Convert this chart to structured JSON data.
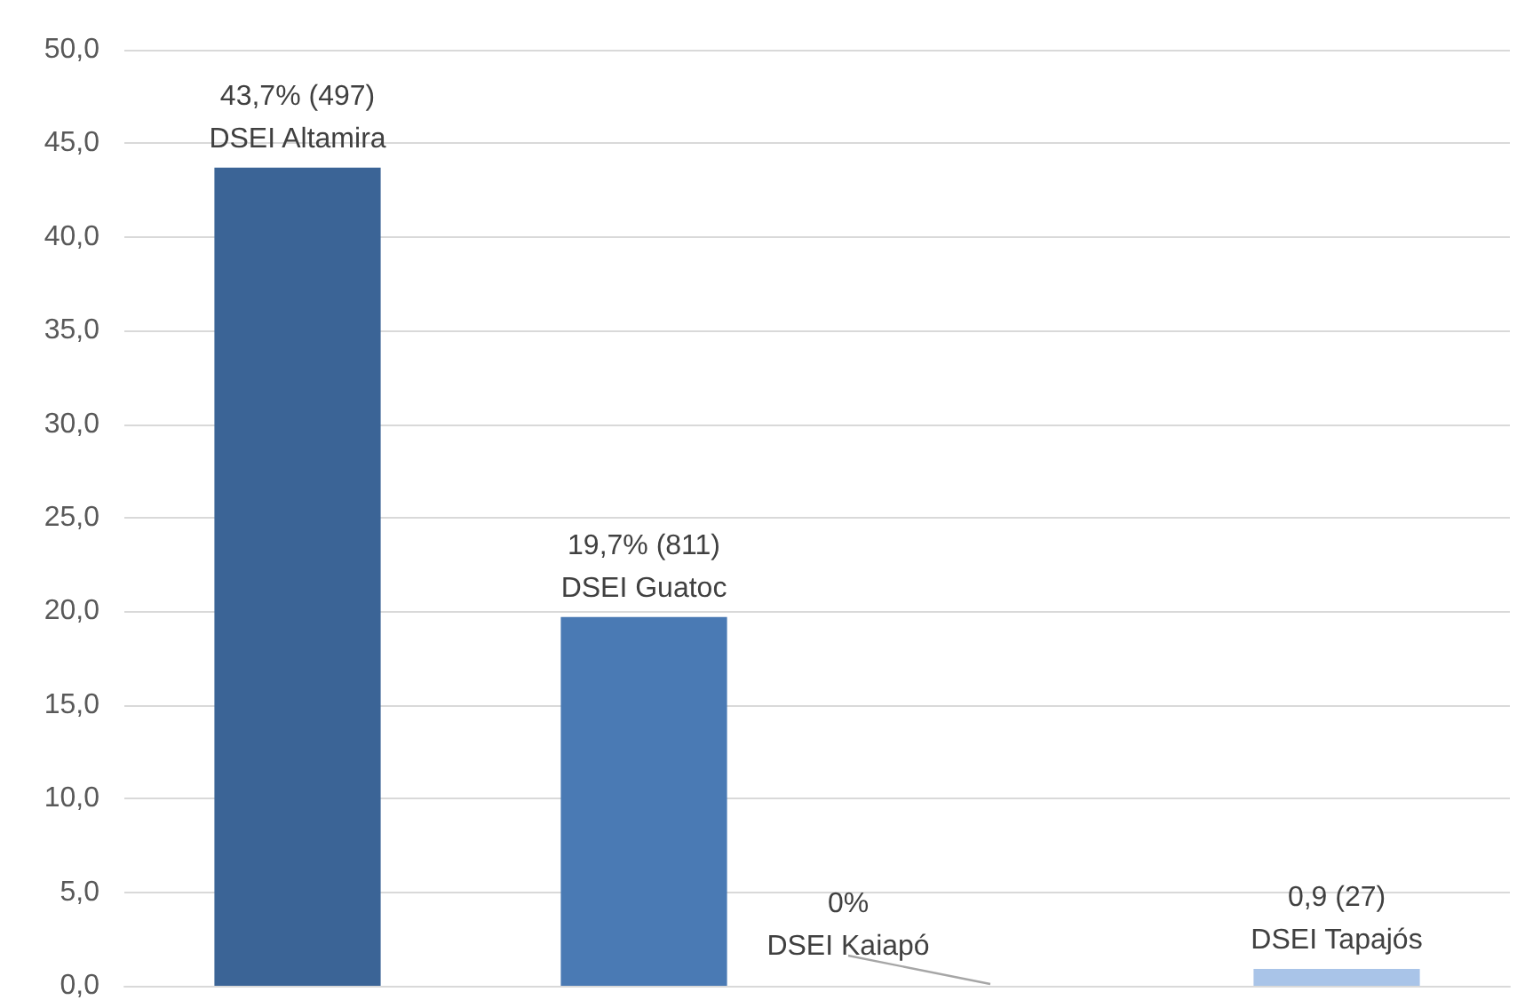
{
  "chart_data": {
    "type": "bar",
    "categories": [
      null,
      null,
      null,
      null
    ],
    "values": [
      43.7,
      19.7,
      0,
      0.9
    ],
    "colors": [
      "#3b6496",
      "#4a7ab4",
      "#4a7ab4",
      "#a9c4e8"
    ],
    "value_labels": [
      "43,7% (497)\nDSEI Altamira",
      "19,7% (811)\nDSEI Guatoc",
      "0%\nDSEI Kaiapó",
      "0,9 (27)\nDSEI Tapajós"
    ],
    "ylim": [
      0,
      50
    ],
    "yticks": [
      {
        "value": 0,
        "label": "0,0"
      },
      {
        "value": 5,
        "label": "5,0"
      },
      {
        "value": 10,
        "label": "10,0"
      },
      {
        "value": 15,
        "label": "15,0"
      },
      {
        "value": 20,
        "label": "20,0"
      },
      {
        "value": 25,
        "label": "25,0"
      },
      {
        "value": 30,
        "label": "30,0"
      },
      {
        "value": 35,
        "label": "35,0"
      },
      {
        "value": 40,
        "label": "40,0"
      },
      {
        "value": 45,
        "label": "45,0"
      },
      {
        "value": 50,
        "label": "50,0"
      }
    ],
    "grid": "y",
    "tick_labels": "y"
  }
}
